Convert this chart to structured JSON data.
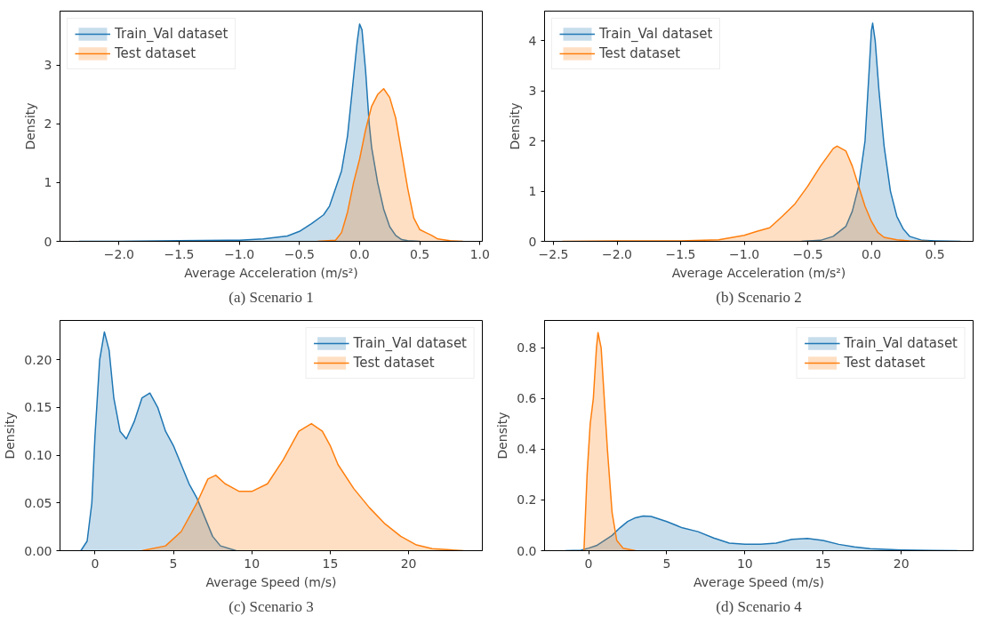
{
  "chart_data": [
    {
      "type": "area",
      "title": "(a) Scenario 1",
      "xlabel": "Average Acceleration (m/s²)",
      "ylabel": "Density",
      "legend": "top left",
      "grid": false,
      "xlim": [
        -2.49,
        1.02
      ],
      "ylim": [
        0,
        3.92
      ],
      "xticks": [
        {
          "value": -2.0,
          "label": "−2.0"
        },
        {
          "value": -1.5,
          "label": "−1.5"
        },
        {
          "value": -1.0,
          "label": "−1.0"
        },
        {
          "value": -0.5,
          "label": "−0.5"
        },
        {
          "value": 0.0,
          "label": "0.0"
        },
        {
          "value": 0.5,
          "label": "0.5"
        },
        {
          "value": 1.0,
          "label": "1.0"
        }
      ],
      "yticks": [
        0,
        1,
        2,
        3
      ],
      "series": [
        {
          "name": "Train_Val dataset",
          "color": "#1f77b4",
          "x": [
            -2.33,
            -2.0,
            -1.5,
            -1.0,
            -0.8,
            -0.6,
            -0.5,
            -0.4,
            -0.3,
            -0.25,
            -0.2,
            -0.15,
            -0.1,
            -0.05,
            -0.02,
            0.0,
            0.02,
            0.05,
            0.08,
            0.1,
            0.15,
            0.2,
            0.25,
            0.3,
            0.35,
            0.4,
            0.5
          ],
          "values": [
            0,
            0,
            0.01,
            0.02,
            0.04,
            0.09,
            0.17,
            0.3,
            0.45,
            0.6,
            0.9,
            1.2,
            1.8,
            2.8,
            3.4,
            3.7,
            3.6,
            2.9,
            2.0,
            1.6,
            1.0,
            0.55,
            0.25,
            0.1,
            0.03,
            0.01,
            0
          ]
        },
        {
          "name": "Test dataset",
          "color": "#ff7f0e",
          "x": [
            -0.35,
            -0.2,
            -0.15,
            -0.1,
            -0.05,
            0.0,
            0.05,
            0.1,
            0.15,
            0.2,
            0.25,
            0.3,
            0.35,
            0.4,
            0.45,
            0.5,
            0.55,
            0.6,
            0.65,
            0.75,
            0.86
          ],
          "values": [
            0,
            0.02,
            0.15,
            0.5,
            1.0,
            1.4,
            1.9,
            2.3,
            2.5,
            2.6,
            2.45,
            2.1,
            1.5,
            0.9,
            0.4,
            0.2,
            0.15,
            0.1,
            0.04,
            0.01,
            0
          ]
        }
      ]
    },
    {
      "type": "area",
      "title": "(b) Scenario 2",
      "xlabel": "Average Acceleration (m/s²)",
      "ylabel": "Density",
      "legend": "top left",
      "grid": false,
      "xlim": [
        -2.57,
        0.8
      ],
      "ylim": [
        0,
        4.59
      ],
      "xticks": [
        {
          "value": -2.5,
          "label": "−2.5"
        },
        {
          "value": -2.0,
          "label": "−2.0"
        },
        {
          "value": -1.5,
          "label": "−1.5"
        },
        {
          "value": -1.0,
          "label": "−1.0"
        },
        {
          "value": -0.5,
          "label": "−0.5"
        },
        {
          "value": 0.0,
          "label": "0.0"
        },
        {
          "value": 0.5,
          "label": "0.5"
        }
      ],
      "yticks": [
        0,
        1,
        2,
        3,
        4
      ],
      "series": [
        {
          "name": "Train_Val dataset",
          "color": "#1f77b4",
          "x": [
            -0.55,
            -0.4,
            -0.3,
            -0.2,
            -0.15,
            -0.1,
            -0.05,
            -0.02,
            0.0,
            0.01,
            0.03,
            0.06,
            0.1,
            0.15,
            0.2,
            0.25,
            0.3,
            0.4,
            0.5,
            0.7
          ],
          "values": [
            0,
            0.02,
            0.1,
            0.3,
            0.6,
            1.1,
            2.0,
            3.3,
            4.2,
            4.35,
            4.0,
            3.0,
            1.9,
            1.0,
            0.5,
            0.25,
            0.1,
            0.02,
            0.01,
            0
          ]
        },
        {
          "name": "Test dataset",
          "color": "#ff7f0e",
          "x": [
            -2.43,
            -2.0,
            -1.5,
            -1.2,
            -1.0,
            -0.9,
            -0.8,
            -0.7,
            -0.6,
            -0.5,
            -0.4,
            -0.3,
            -0.27,
            -0.2,
            -0.15,
            -0.1,
            -0.05,
            0.0,
            0.05,
            0.1,
            0.2,
            0.3,
            0.45
          ],
          "values": [
            0,
            0.01,
            0.01,
            0.03,
            0.12,
            0.2,
            0.27,
            0.5,
            0.75,
            1.1,
            1.5,
            1.85,
            1.9,
            1.8,
            1.5,
            1.1,
            0.7,
            0.4,
            0.18,
            0.08,
            0.03,
            0.01,
            0
          ]
        }
      ]
    },
    {
      "type": "area",
      "title": "(c) Scenario 3",
      "xlabel": "Average Speed (m/s)",
      "ylabel": "Density",
      "legend": "top right",
      "grid": false,
      "xlim": [
        -2.23,
        24.7
      ],
      "ylim": [
        0,
        0.241
      ],
      "xticks": [
        0,
        5,
        10,
        15,
        20
      ],
      "yticks": [
        {
          "value": 0,
          "label": "0.00"
        },
        {
          "value": 0.05,
          "label": "0.05"
        },
        {
          "value": 0.1,
          "label": "0.10"
        },
        {
          "value": 0.15,
          "label": "0.15"
        },
        {
          "value": 0.2,
          "label": "0.20"
        }
      ],
      "series": [
        {
          "name": "Train_Val dataset",
          "color": "#1f77b4",
          "x": [
            -0.9,
            -0.5,
            -0.2,
            0.0,
            0.3,
            0.6,
            0.9,
            1.2,
            1.6,
            2.0,
            2.5,
            3.0,
            3.5,
            4.0,
            4.5,
            5.0,
            5.5,
            6.0,
            6.5,
            7.0,
            7.5,
            8.0,
            9.0
          ],
          "values": [
            0,
            0.01,
            0.05,
            0.12,
            0.2,
            0.229,
            0.21,
            0.16,
            0.125,
            0.117,
            0.135,
            0.16,
            0.165,
            0.15,
            0.125,
            0.11,
            0.09,
            0.07,
            0.055,
            0.035,
            0.015,
            0.005,
            0
          ]
        },
        {
          "name": "Test dataset",
          "color": "#ff7f0e",
          "x": [
            3.0,
            4.5,
            5.5,
            6.5,
            7.2,
            7.7,
            8.3,
            9.2,
            10,
            11,
            12,
            13,
            13.8,
            14.5,
            15,
            15.5,
            16.5,
            17.5,
            18.5,
            19.5,
            20.5,
            21.5,
            23.5
          ],
          "values": [
            0,
            0.005,
            0.02,
            0.05,
            0.075,
            0.079,
            0.07,
            0.062,
            0.062,
            0.07,
            0.095,
            0.125,
            0.133,
            0.125,
            0.11,
            0.09,
            0.065,
            0.045,
            0.028,
            0.015,
            0.006,
            0.002,
            0
          ]
        }
      ]
    },
    {
      "type": "area",
      "title": "(d) Scenario 4",
      "xlabel": "Average Speed (m/s)",
      "ylabel": "Density",
      "legend": "top right",
      "grid": false,
      "xlim": [
        -2.82,
        24.6
      ],
      "ylim": [
        0,
        0.908
      ],
      "xticks": [
        0,
        5,
        10,
        15,
        20
      ],
      "yticks": [
        {
          "value": 0,
          "label": "0.0"
        },
        {
          "value": 0.2,
          "label": "0.2"
        },
        {
          "value": 0.4,
          "label": "0.4"
        },
        {
          "value": 0.6,
          "label": "0.6"
        },
        {
          "value": 0.8,
          "label": "0.8"
        }
      ],
      "series": [
        {
          "name": "Train_Val dataset",
          "color": "#1f77b4",
          "x": [
            -1.5,
            -0.5,
            0,
            0.5,
            1,
            1.5,
            2.0,
            2.5,
            3,
            3.5,
            4,
            5,
            6,
            7,
            8,
            9,
            10,
            11,
            12,
            13,
            14,
            15,
            16,
            17,
            18,
            20,
            22,
            23.6
          ],
          "values": [
            0,
            0.002,
            0.01,
            0.02,
            0.04,
            0.06,
            0.09,
            0.115,
            0.13,
            0.137,
            0.135,
            0.115,
            0.09,
            0.075,
            0.05,
            0.03,
            0.025,
            0.025,
            0.03,
            0.045,
            0.048,
            0.04,
            0.025,
            0.015,
            0.008,
            0.003,
            0.001,
            0
          ]
        },
        {
          "name": "Test dataset",
          "color": "#ff7f0e",
          "x": [
            -0.3,
            -0.1,
            0.1,
            0.3,
            0.5,
            0.6,
            0.8,
            1.0,
            1.2,
            1.5,
            1.8,
            2.2,
            3.0
          ],
          "values": [
            0,
            0.3,
            0.5,
            0.6,
            0.8,
            0.86,
            0.8,
            0.6,
            0.4,
            0.15,
            0.04,
            0.01,
            0
          ]
        }
      ]
    }
  ]
}
